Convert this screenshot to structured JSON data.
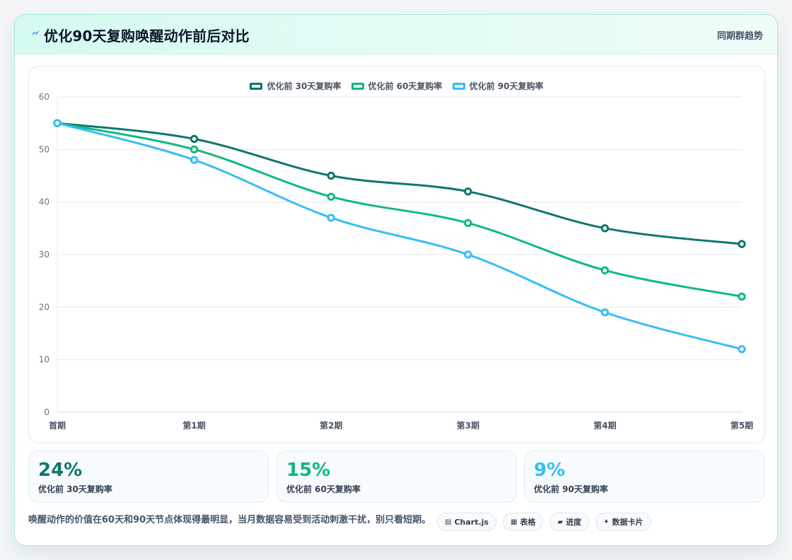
{
  "header": {
    "title": "优化90天复购唤醒动作前后对比",
    "subtitle": "同期群趋势",
    "icon": "lightning-icon"
  },
  "chart_data": {
    "type": "line",
    "categories": [
      "首期",
      "第1期",
      "第2期",
      "第3期",
      "第4期",
      "第5期"
    ],
    "series": [
      {
        "name": "优化前 30天复购率",
        "values": [
          55,
          52,
          45,
          42,
          35,
          32
        ],
        "color": "#0f766e"
      },
      {
        "name": "优化前 60天复购率",
        "values": [
          55,
          50,
          41,
          36,
          27,
          22
        ],
        "color": "#10b981"
      },
      {
        "name": "优化前 90天复购率",
        "values": [
          55,
          48,
          37,
          30,
          19,
          12
        ],
        "color": "#38bdf8"
      }
    ],
    "ylim": [
      0,
      60
    ],
    "yticks": [
      0,
      10,
      20,
      30,
      40,
      50,
      60
    ],
    "grid": true,
    "legend_position": "top-center"
  },
  "metrics": [
    {
      "value": "24%",
      "label": "优化前 30天复购率",
      "color": "#0f766e"
    },
    {
      "value": "15%",
      "label": "优化前 60天复购率",
      "color": "#10b981"
    },
    {
      "value": "9%",
      "label": "优化前 90天复购率",
      "color": "#38bdf8"
    }
  ],
  "note": "唤醒动作的价值在60天和90天节点体现得最明显，当月数据容易受到活动刺激干扰，别只看短期。",
  "tools": [
    {
      "label": "Chart.js",
      "icon": "table-icon"
    },
    {
      "label": "表格",
      "icon": "grid-icon"
    },
    {
      "label": "进度",
      "icon": "progress-icon"
    },
    {
      "label": "数据卡片",
      "icon": "sparkle-icon"
    }
  ]
}
